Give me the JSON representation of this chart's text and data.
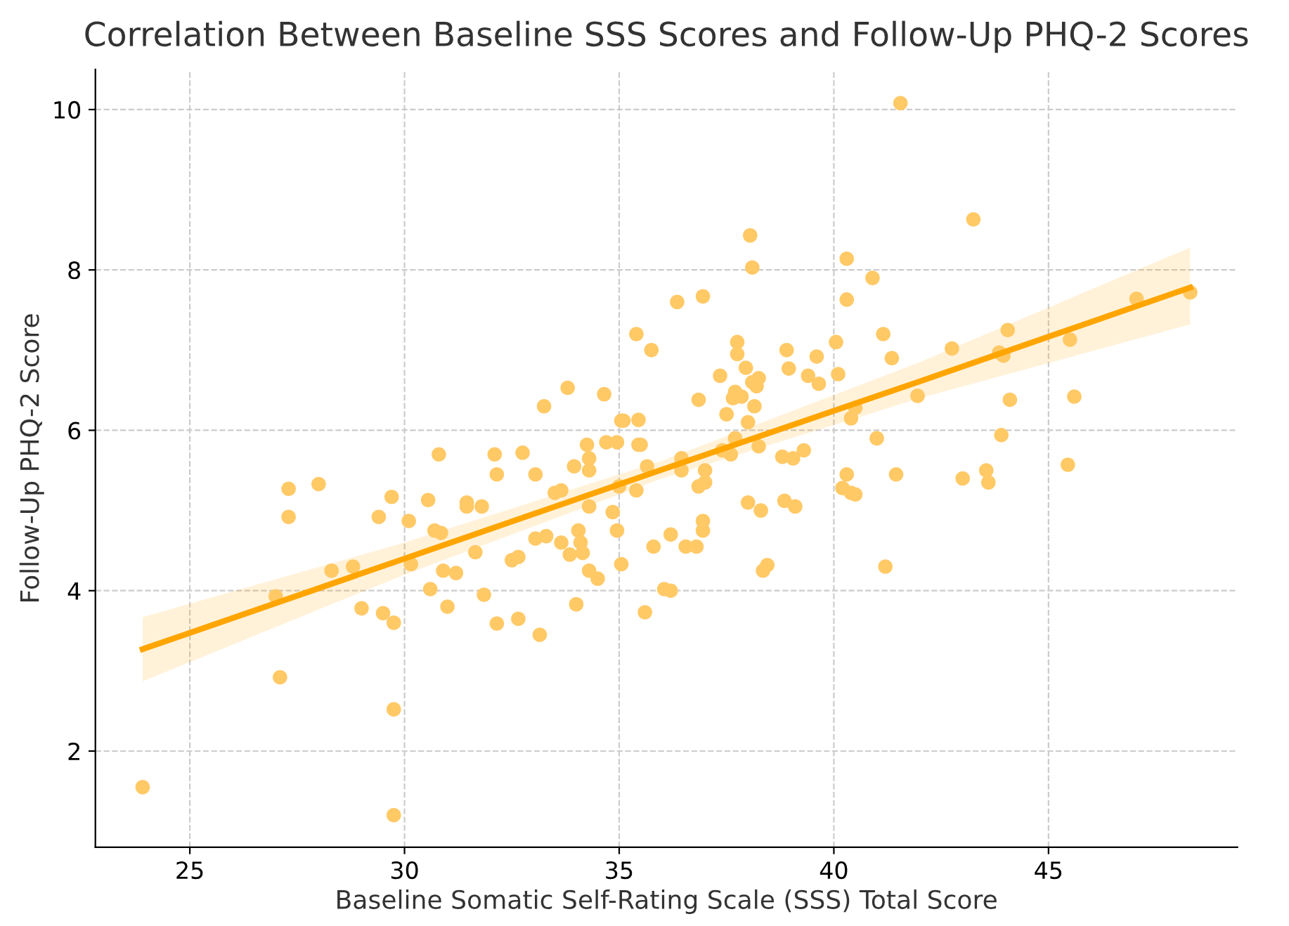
{
  "chart_data": {
    "type": "scatter",
    "title": "Correlation Between Baseline SSS Scores and Follow-Up PHQ-2 Scores",
    "xlabel": "Baseline Somatic Self-Rating Scale (SSS) Total Score",
    "ylabel": "Follow-Up PHQ-2 Score",
    "xlim": [
      22.8,
      49.4
    ],
    "ylim": [
      0.8,
      10.5
    ],
    "xticks": [
      25,
      30,
      35,
      40,
      45
    ],
    "yticks": [
      2,
      4,
      6,
      8,
      10
    ],
    "grid": true,
    "series": [
      {
        "color": "#ffc966",
        "marker": "circle",
        "x": [
          23.9,
          27.0,
          27.1,
          27.3,
          27.3,
          28.0,
          28.3,
          28.8,
          29.0,
          29.4,
          29.5,
          29.7,
          29.75,
          29.75,
          29.75,
          30.1,
          30.15,
          30.55,
          30.6,
          30.7,
          30.8,
          30.85,
          30.9,
          31.0,
          31.2,
          31.45,
          31.45,
          31.65,
          31.8,
          31.85,
          32.1,
          32.15,
          32.15,
          32.5,
          32.65,
          32.65,
          32.75,
          33.05,
          33.05,
          33.15,
          33.25,
          33.3,
          33.5,
          33.65,
          33.65,
          33.8,
          33.85,
          33.95,
          34.0,
          34.05,
          34.1,
          34.15,
          34.25,
          34.3,
          34.3,
          34.3,
          34.3,
          34.5,
          34.65,
          34.7,
          34.85,
          34.95,
          34.95,
          35.0,
          35.05,
          35.1,
          35.05,
          35.4,
          35.4,
          35.45,
          35.45,
          35.5,
          35.6,
          35.65,
          35.75,
          35.8,
          36.05,
          36.2,
          36.2,
          36.35,
          36.45,
          36.45,
          36.55,
          36.8,
          36.85,
          36.85,
          36.95,
          36.95,
          36.95,
          37.0,
          37.0,
          37.35,
          37.4,
          37.5,
          37.6,
          37.65,
          37.7,
          37.7,
          37.75,
          37.75,
          37.85,
          37.95,
          38.0,
          38.0,
          38.05,
          38.1,
          38.1,
          38.15,
          38.2,
          38.25,
          38.25,
          38.3,
          38.35,
          38.45,
          38.8,
          38.85,
          38.9,
          38.95,
          39.05,
          39.1,
          39.3,
          39.4,
          39.6,
          39.65,
          40.05,
          40.1,
          40.2,
          40.3,
          40.3,
          40.3,
          40.4,
          40.4,
          40.5,
          40.5,
          40.9,
          41.0,
          41.15,
          41.2,
          41.35,
          41.45,
          41.55,
          41.95,
          42.75,
          43.0,
          43.25,
          43.55,
          43.6,
          43.85,
          43.9,
          43.95,
          44.05,
          44.1,
          45.45,
          45.5,
          45.6,
          47.05,
          48.3
        ],
        "values": [
          1.55,
          3.93,
          2.92,
          5.27,
          4.92,
          5.33,
          4.25,
          4.3,
          3.78,
          4.92,
          3.72,
          5.17,
          3.6,
          2.52,
          1.2,
          4.87,
          4.33,
          5.13,
          4.02,
          4.75,
          5.7,
          4.72,
          4.25,
          3.8,
          4.22,
          5.1,
          5.05,
          4.48,
          5.05,
          3.95,
          5.7,
          5.45,
          3.59,
          4.38,
          4.42,
          3.65,
          5.72,
          5.45,
          4.65,
          3.45,
          6.3,
          4.68,
          5.22,
          4.6,
          5.25,
          6.53,
          4.45,
          5.55,
          3.83,
          4.75,
          4.6,
          4.47,
          5.82,
          5.05,
          5.5,
          5.65,
          4.25,
          4.15,
          6.45,
          5.85,
          4.98,
          5.85,
          4.75,
          5.3,
          6.12,
          6.12,
          4.33,
          7.2,
          5.25,
          6.13,
          5.82,
          5.82,
          3.73,
          5.55,
          7.0,
          4.55,
          4.02,
          4.0,
          4.7,
          7.6,
          5.5,
          5.65,
          4.55,
          4.55,
          5.3,
          6.38,
          4.75,
          4.87,
          7.67,
          5.35,
          5.5,
          6.68,
          5.75,
          6.2,
          5.7,
          6.4,
          6.48,
          5.9,
          7.1,
          6.95,
          6.42,
          6.78,
          5.1,
          6.1,
          8.43,
          8.03,
          6.6,
          6.3,
          6.55,
          6.65,
          5.8,
          5.0,
          4.25,
          4.32,
          5.67,
          5.12,
          7.0,
          6.77,
          5.65,
          5.05,
          5.75,
          6.68,
          6.92,
          6.58,
          7.1,
          6.7,
          5.28,
          8.14,
          7.63,
          5.45,
          6.15,
          5.22,
          5.2,
          6.28,
          7.9,
          5.9,
          7.2,
          4.3,
          6.9,
          5.45,
          10.08,
          6.43,
          7.02,
          5.4,
          8.63,
          5.5,
          5.35,
          6.97,
          5.94,
          6.93,
          7.25,
          6.38,
          5.57,
          7.13,
          6.42,
          7.64,
          7.72
        ]
      },
      {
        "type": "line",
        "color": "#ffa500",
        "line_style": "solid",
        "marker": "none",
        "x": [
          23.9,
          30,
          36,
          42,
          48.3
        ],
        "values": [
          3.27,
          4.4,
          5.51,
          6.61,
          7.78
        ],
        "lower": [
          2.87,
          4.2,
          5.4,
          6.4,
          7.32
        ],
        "upper": [
          3.67,
          4.6,
          5.62,
          6.85,
          8.28
        ]
      }
    ]
  }
}
